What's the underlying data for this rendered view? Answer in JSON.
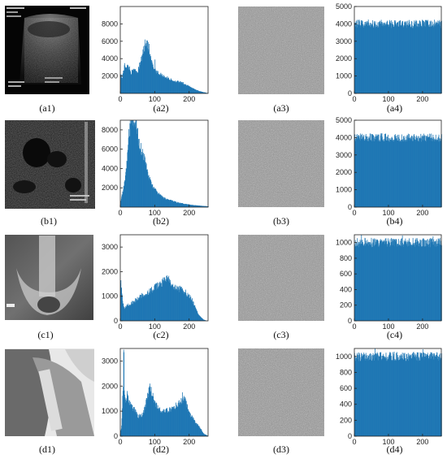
{
  "chart_data": [
    {
      "id": "a2",
      "type": "area",
      "caption": "(a2)",
      "xlim": [
        0,
        255
      ],
      "ylim": [
        0,
        10000
      ],
      "x_ticks": [
        0,
        100,
        200
      ],
      "y_ticks": [],
      "color": "#1f77b4",
      "profile": [
        [
          0,
          2300
        ],
        [
          5,
          1700
        ],
        [
          8,
          2600
        ],
        [
          12,
          3200
        ],
        [
          18,
          3100
        ],
        [
          25,
          3000
        ],
        [
          30,
          2400
        ],
        [
          35,
          2500
        ],
        [
          40,
          2900
        ],
        [
          45,
          2600
        ],
        [
          50,
          2500
        ],
        [
          55,
          3200
        ],
        [
          60,
          3800
        ],
        [
          65,
          4800
        ],
        [
          70,
          5400
        ],
        [
          75,
          5800
        ],
        [
          80,
          5300
        ],
        [
          85,
          4300
        ],
        [
          90,
          3600
        ],
        [
          95,
          3000
        ],
        [
          100,
          2800
        ],
        [
          110,
          2300
        ],
        [
          120,
          2100
        ],
        [
          130,
          1900
        ],
        [
          140,
          1700
        ],
        [
          150,
          1500
        ],
        [
          160,
          1400
        ],
        [
          170,
          1300
        ],
        [
          180,
          1200
        ],
        [
          190,
          1000
        ],
        [
          200,
          800
        ],
        [
          210,
          600
        ],
        [
          220,
          400
        ],
        [
          230,
          250
        ],
        [
          240,
          150
        ],
        [
          250,
          60
        ],
        [
          255,
          20
        ]
      ],
      "spikes": [
        [
          71,
          6200
        ],
        [
          76,
          6100
        ],
        [
          80,
          5900
        ],
        [
          83,
          5700
        ],
        [
          100,
          3900
        ]
      ]
    },
    {
      "id": "a4",
      "type": "area",
      "caption": "(a4)",
      "xlim": [
        0,
        255
      ],
      "ylim": [
        0,
        5000
      ],
      "x_ticks": [
        0,
        100,
        200
      ],
      "y_ticks": [
        0,
        1000,
        2000,
        3000,
        4000,
        5000
      ],
      "color": "#1f77b4",
      "profile": [
        [
          0,
          4000
        ],
        [
          255,
          4000
        ]
      ],
      "spikes": [
        [
          40,
          4250
        ],
        [
          120,
          4200
        ],
        [
          210,
          4200
        ]
      ]
    },
    {
      "id": "b2",
      "type": "area",
      "caption": "(b2)",
      "xlim": [
        0,
        255
      ],
      "ylim": [
        0,
        9000
      ],
      "x_ticks": [
        0,
        100,
        200
      ],
      "y_ticks": [],
      "color": "#1f77b4",
      "profile": [
        [
          0,
          600
        ],
        [
          8,
          1800
        ],
        [
          15,
          3400
        ],
        [
          20,
          5500
        ],
        [
          25,
          7800
        ],
        [
          30,
          9000
        ],
        [
          35,
          9000
        ],
        [
          40,
          9000
        ],
        [
          45,
          8800
        ],
        [
          50,
          7600
        ],
        [
          55,
          6600
        ],
        [
          60,
          6000
        ],
        [
          65,
          5600
        ],
        [
          70,
          4900
        ],
        [
          75,
          4300
        ],
        [
          80,
          3400
        ],
        [
          90,
          2400
        ],
        [
          100,
          1800
        ],
        [
          110,
          1400
        ],
        [
          120,
          1100
        ],
        [
          130,
          900
        ],
        [
          140,
          750
        ],
        [
          150,
          650
        ],
        [
          160,
          550
        ],
        [
          170,
          450
        ],
        [
          180,
          380
        ],
        [
          190,
          320
        ],
        [
          200,
          270
        ],
        [
          210,
          220
        ],
        [
          220,
          180
        ],
        [
          230,
          150
        ],
        [
          240,
          120
        ],
        [
          250,
          100
        ],
        [
          255,
          60
        ]
      ],
      "spikes": []
    },
    {
      "id": "b4",
      "type": "area",
      "caption": "(b4)",
      "xlim": [
        0,
        255
      ],
      "ylim": [
        0,
        5000
      ],
      "x_ticks": [
        0,
        100,
        200
      ],
      "y_ticks": [
        0,
        1000,
        2000,
        3000,
        4000,
        5000
      ],
      "color": "#1f77b4",
      "profile": [
        [
          0,
          4000
        ],
        [
          255,
          4000
        ]
      ],
      "spikes": [
        [
          80,
          4250
        ],
        [
          160,
          4200
        ]
      ]
    },
    {
      "id": "c2",
      "type": "area",
      "caption": "(c2)",
      "xlim": [
        0,
        255
      ],
      "ylim": [
        0,
        3500
      ],
      "x_ticks": [
        0,
        100,
        200
      ],
      "y_ticks": [
        0,
        1000,
        2000,
        3000
      ],
      "color": "#1f77b4",
      "profile": [
        [
          0,
          1500
        ],
        [
          3,
          1350
        ],
        [
          6,
          800
        ],
        [
          10,
          500
        ],
        [
          15,
          550
        ],
        [
          20,
          650
        ],
        [
          30,
          700
        ],
        [
          40,
          800
        ],
        [
          50,
          900
        ],
        [
          60,
          1000
        ],
        [
          70,
          1100
        ],
        [
          80,
          1150
        ],
        [
          90,
          1250
        ],
        [
          100,
          1350
        ],
        [
          110,
          1450
        ],
        [
          120,
          1550
        ],
        [
          130,
          1650
        ],
        [
          135,
          1750
        ],
        [
          140,
          1650
        ],
        [
          150,
          1400
        ],
        [
          160,
          1300
        ],
        [
          170,
          1300
        ],
        [
          180,
          1250
        ],
        [
          190,
          1150
        ],
        [
          200,
          1000
        ],
        [
          210,
          800
        ],
        [
          215,
          600
        ],
        [
          220,
          450
        ],
        [
          225,
          300
        ],
        [
          230,
          200
        ],
        [
          240,
          60
        ],
        [
          250,
          0
        ],
        [
          255,
          0
        ]
      ],
      "spikes": [
        [
          1,
          1650
        ],
        [
          135,
          1850
        ]
      ]
    },
    {
      "id": "c4",
      "type": "area",
      "caption": "(c4)",
      "xlim": [
        0,
        255
      ],
      "ylim": [
        0,
        1100
      ],
      "x_ticks": [
        0,
        100,
        200
      ],
      "y_ticks": [
        0,
        200,
        400,
        600,
        800,
        1000
      ],
      "color": "#1f77b4",
      "profile": [
        [
          0,
          1000
        ],
        [
          255,
          1000
        ]
      ],
      "spikes": [
        [
          20,
          1100
        ],
        [
          140,
          1090
        ],
        [
          230,
          1080
        ]
      ]
    },
    {
      "id": "d2",
      "type": "area",
      "caption": "(d2)",
      "xlim": [
        0,
        255
      ],
      "ylim": [
        0,
        3500
      ],
      "x_ticks": [
        0,
        100,
        200
      ],
      "y_ticks": [
        0,
        1000,
        2000,
        3000
      ],
      "color": "#1f77b4",
      "profile": [
        [
          0,
          200
        ],
        [
          3,
          400
        ],
        [
          6,
          1500
        ],
        [
          9,
          2000
        ],
        [
          12,
          1500
        ],
        [
          15,
          1400
        ],
        [
          20,
          1700
        ],
        [
          25,
          1400
        ],
        [
          30,
          1200
        ],
        [
          35,
          1100
        ],
        [
          40,
          1100
        ],
        [
          45,
          1000
        ],
        [
          50,
          800
        ],
        [
          55,
          800
        ],
        [
          60,
          800
        ],
        [
          65,
          900
        ],
        [
          70,
          1100
        ],
        [
          75,
          1400
        ],
        [
          80,
          1700
        ],
        [
          85,
          1900
        ],
        [
          90,
          1800
        ],
        [
          95,
          1500
        ],
        [
          100,
          1300
        ],
        [
          110,
          1100
        ],
        [
          120,
          1000
        ],
        [
          130,
          1000
        ],
        [
          140,
          1050
        ],
        [
          150,
          1100
        ],
        [
          160,
          1200
        ],
        [
          170,
          1300
        ],
        [
          180,
          1450
        ],
        [
          185,
          1500
        ],
        [
          190,
          1350
        ],
        [
          195,
          1100
        ],
        [
          200,
          900
        ],
        [
          210,
          700
        ],
        [
          220,
          500
        ],
        [
          230,
          350
        ],
        [
          235,
          250
        ],
        [
          240,
          120
        ],
        [
          250,
          40
        ],
        [
          255,
          0
        ]
      ],
      "spikes": [
        [
          9,
          3450
        ],
        [
          10,
          3350
        ],
        [
          85,
          2100
        ],
        [
          180,
          1750
        ]
      ]
    },
    {
      "id": "d4",
      "type": "area",
      "caption": "(d4)",
      "xlim": [
        0,
        255
      ],
      "ylim": [
        0,
        1100
      ],
      "x_ticks": [
        0,
        100,
        200
      ],
      "y_ticks": [
        0,
        200,
        400,
        600,
        800,
        1000
      ],
      "color": "#1f77b4",
      "profile": [
        [
          0,
          1000
        ],
        [
          255,
          1000
        ]
      ],
      "spikes": [
        [
          60,
          1100
        ],
        [
          200,
          1090
        ]
      ]
    }
  ],
  "captions": {
    "a1": "(a1)",
    "a3": "(a3)",
    "b1": "(b1)",
    "b3": "(b3)",
    "c1": "(c1)",
    "c3": "(c3)",
    "d1": "(d1)",
    "d3": "(d3)"
  },
  "partial_ticks": {
    "a2": [
      "2000",
      "4000",
      "6000",
      "8000"
    ],
    "b2": [
      "2000",
      "4000",
      "6000",
      "8000"
    ]
  }
}
